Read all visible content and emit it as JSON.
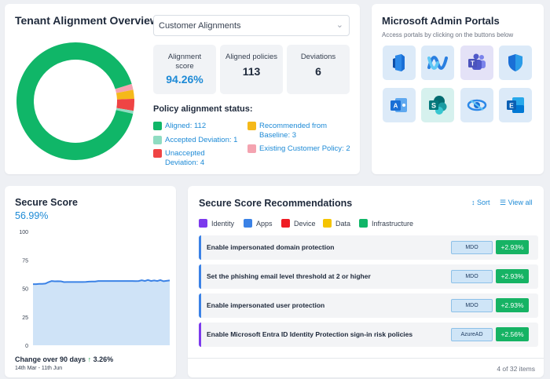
{
  "tenant": {
    "title": "Tenant Alignment Overview",
    "dropdown_value": "Customer Alignments",
    "stats": {
      "score_label": "Alignment score",
      "score_value": "94.26%",
      "aligned_label": "Aligned policies",
      "aligned_value": "113",
      "deviations_label": "Deviations",
      "deviations_value": "6"
    },
    "status_title": "Policy alignment status:",
    "legend": [
      {
        "label": "Aligned: 112",
        "color": "#10b668",
        "value": 112
      },
      {
        "label": "Accepted Deviation: 1",
        "color": "#8fdcc2",
        "value": 1
      },
      {
        "label": "Unaccepted Deviation: 4",
        "color": "#ef4444",
        "value": 4
      },
      {
        "label": "Recommended from Baseline: 3",
        "color": "#f5b91a",
        "value": 3
      },
      {
        "label": "Existing Customer Policy: 2",
        "color": "#f4a3b0",
        "value": 2
      }
    ]
  },
  "portals": {
    "title": "Microsoft Admin Portals",
    "subtitle": "Access portals by clicking on the buttons below",
    "items": [
      {
        "icon": "microsoft-365-icon",
        "bg": "#dceaf8"
      },
      {
        "icon": "entra-icon",
        "bg": "#dceaf8"
      },
      {
        "icon": "teams-icon",
        "bg": "#e4e2f7"
      },
      {
        "icon": "defender-icon",
        "bg": "#dceaf8"
      },
      {
        "icon": "azure-ad-icon",
        "bg": "#dceaf8"
      },
      {
        "icon": "sharepoint-icon",
        "bg": "#d6f1ee"
      },
      {
        "icon": "intune-icon",
        "bg": "#dceaf8"
      },
      {
        "icon": "exchange-icon",
        "bg": "#dceaf8"
      }
    ]
  },
  "secure_score": {
    "title": "Secure Score",
    "value": "56.99%",
    "change_label": "Change over 90 days",
    "change_arrow": "↑",
    "change_value": "3.26%",
    "range": "14th Mar - 11th Jun"
  },
  "chart_data": {
    "type": "area",
    "title": "",
    "xlabel": "",
    "ylabel": "",
    "ylim": [
      0,
      100
    ],
    "yticks": [
      "100",
      "75",
      "50",
      "25",
      "0"
    ],
    "values": [
      53.7,
      53.7,
      53.9,
      53.9,
      54.2,
      55.5,
      56.5,
      56.2,
      56.3,
      56.2,
      55.5,
      55.6,
      55.6,
      55.6,
      55.6,
      55.6,
      55.6,
      55.7,
      55.9,
      56.0,
      56.1,
      56.5,
      56.5,
      56.5,
      56.5,
      56.5,
      56.5,
      56.5,
      56.5,
      56.5,
      56.5,
      56.5,
      56.5,
      56.4,
      56.5,
      57.2,
      56.5,
      57.4,
      56.5,
      57.0,
      56.5,
      57.3,
      56.3,
      56.6,
      56.99
    ],
    "grid": false,
    "color": "#3b82e6"
  },
  "recommendations": {
    "title": "Secure Score Recommendations",
    "sort_label": "Sort",
    "view_all_label": "View all",
    "categories": [
      {
        "label": "Identity",
        "color": "#7c3aed"
      },
      {
        "label": "Apps",
        "color": "#3b82e6"
      },
      {
        "label": "Device",
        "color": "#ef1c24"
      },
      {
        "label": "Data",
        "color": "#f5c400"
      },
      {
        "label": "Infrastructure",
        "color": "#10b668"
      }
    ],
    "items": [
      {
        "name": "Enable impersonated domain protection",
        "tag": "MDO",
        "gain": "+2.93%",
        "color": "#3b82e6"
      },
      {
        "name": "Set the phishing email level threshold at 2 or higher",
        "tag": "MDO",
        "gain": "+2.93%",
        "color": "#3b82e6"
      },
      {
        "name": "Enable impersonated user protection",
        "tag": "MDO",
        "gain": "+2.93%",
        "color": "#3b82e6"
      },
      {
        "name": "Enable Microsoft Entra ID Identity Protection sign-in risk policies",
        "tag": "AzureAD",
        "gain": "+2.56%",
        "color": "#7c3aed"
      }
    ],
    "count": "4 of 32 items"
  }
}
